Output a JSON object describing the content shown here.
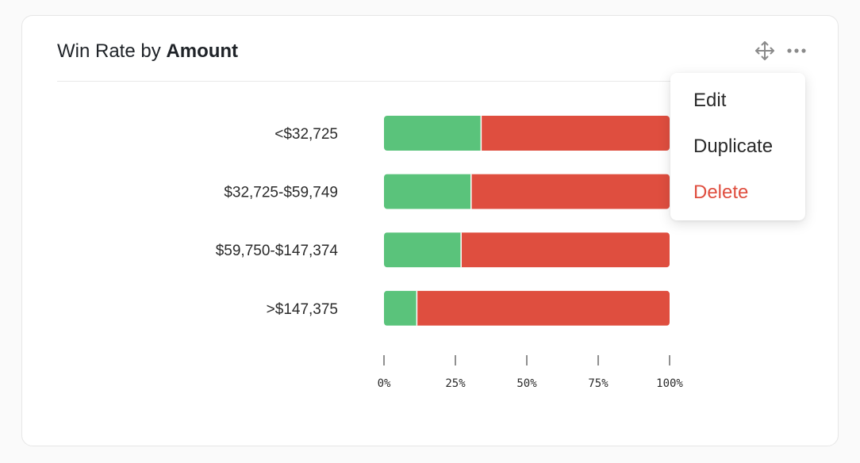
{
  "card": {
    "title_prefix": "Win Rate by",
    "title_bold": "Amount",
    "icons": [
      "move-icon",
      "more-horizontal-icon"
    ]
  },
  "menu": {
    "items": [
      {
        "label": "Edit",
        "style": "normal"
      },
      {
        "label": "Duplicate",
        "style": "normal"
      },
      {
        "label": "Delete",
        "style": "danger"
      }
    ]
  },
  "colors": {
    "won": "#5ac37b",
    "lost": "#df4e3f",
    "danger_text": "#df4e3f"
  },
  "chart_data": {
    "type": "bar",
    "orientation": "horizontal",
    "stacked": true,
    "categories": [
      "<$32,725",
      "$32,725-$59,749",
      "$59,750-$147,374",
      ">$147,375"
    ],
    "series": [
      {
        "color": "#5ac37b",
        "values": [
          34,
          30.5,
          27,
          11.5
        ]
      },
      {
        "color": "#df4e3f",
        "values": [
          66,
          69.5,
          73,
          88.5
        ]
      }
    ],
    "x_ticks": [
      "0%",
      "25%",
      "50%",
      "75%",
      "100%"
    ],
    "xlim": [
      0,
      100
    ],
    "grid": false,
    "legend": "none"
  }
}
